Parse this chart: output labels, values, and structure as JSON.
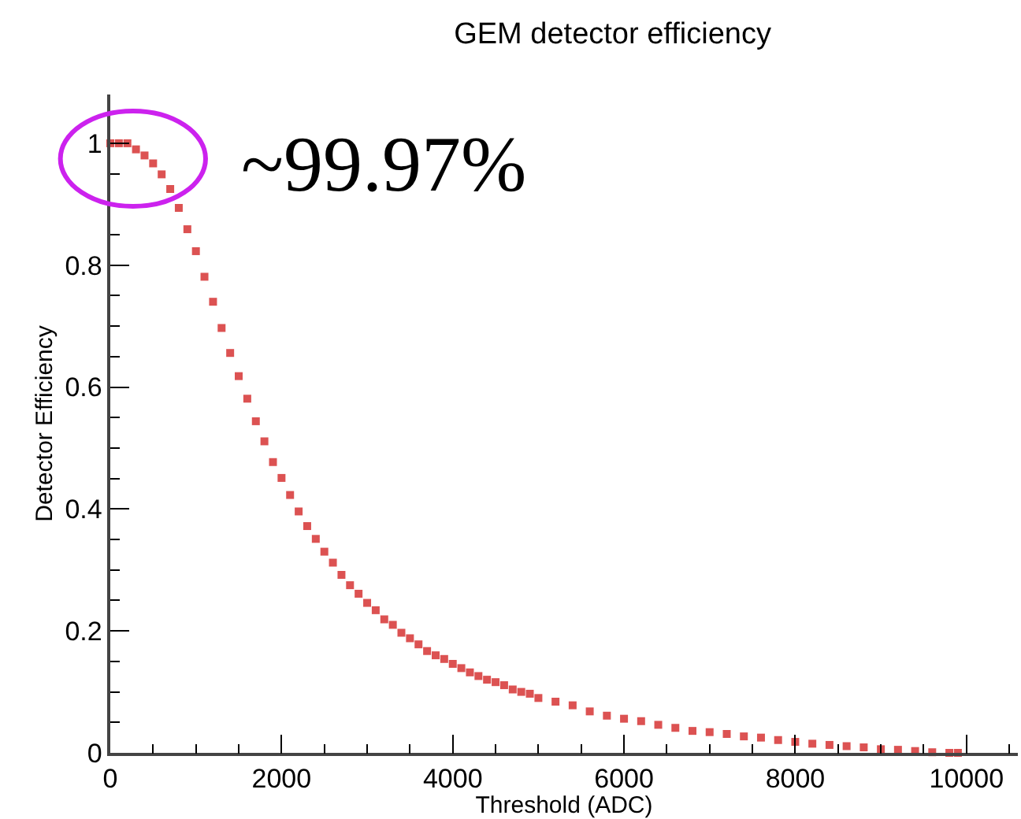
{
  "chart_data": {
    "type": "scatter",
    "title": "GEM detector efficiency",
    "xlabel": "Threshold (ADC)",
    "ylabel": "Detector Efficiency",
    "annotations": [
      "~99.97%"
    ],
    "x": [
      0,
      100,
      200,
      300,
      400,
      500,
      600,
      700,
      800,
      900,
      1000,
      1100,
      1200,
      1300,
      1400,
      1500,
      1600,
      1700,
      1800,
      1900,
      2000,
      2100,
      2200,
      2300,
      2400,
      2500,
      2600,
      2700,
      2800,
      2900,
      3000,
      3100,
      3200,
      3300,
      3400,
      3500,
      3600,
      3700,
      3800,
      3900,
      4000,
      4100,
      4200,
      4300,
      4400,
      4500,
      4600,
      4700,
      4800,
      4900,
      5000,
      5200,
      5400,
      5600,
      5800,
      6000,
      6200,
      6400,
      6600,
      6800,
      7000,
      7200,
      7400,
      7600,
      7800,
      8000,
      8200,
      8400,
      8600,
      8800,
      9000,
      9200,
      9400,
      9600,
      9800,
      9900
    ],
    "series": [
      {
        "color": "#dc5252",
        "values": [
          1.0,
          1.0,
          1.0,
          0.99,
          0.98,
          0.967,
          0.949,
          0.925,
          0.894,
          0.859,
          0.823,
          0.781,
          0.74,
          0.697,
          0.656,
          0.618,
          0.581,
          0.544,
          0.511,
          0.477,
          0.451,
          0.423,
          0.396,
          0.372,
          0.351,
          0.33,
          0.312,
          0.292,
          0.275,
          0.261,
          0.246,
          0.234,
          0.219,
          0.21,
          0.197,
          0.188,
          0.178,
          0.167,
          0.16,
          0.154,
          0.146,
          0.139,
          0.132,
          0.126,
          0.12,
          0.116,
          0.111,
          0.104,
          0.1,
          0.097,
          0.09,
          0.084,
          0.078,
          0.068,
          0.061,
          0.056,
          0.052,
          0.046,
          0.041,
          0.036,
          0.034,
          0.031,
          0.027,
          0.025,
          0.021,
          0.018,
          0.015,
          0.013,
          0.011,
          0.009,
          0.006,
          0.005,
          0.003,
          0.001,
          0.0,
          0.0
        ]
      }
    ],
    "marker": "square",
    "xlim": [
      0,
      10600
    ],
    "xticks": [
      0,
      2000,
      4000,
      6000,
      8000,
      10000
    ],
    "ylim": [
      0,
      1.08
    ],
    "yticks": [
      0,
      0.2,
      0.4,
      0.6,
      0.8,
      1
    ]
  }
}
